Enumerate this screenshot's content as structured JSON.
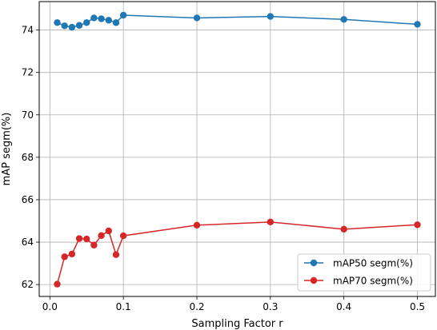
{
  "chart_data": {
    "type": "line",
    "xlabel": "Sampling Factor r",
    "ylabel": "mAP segm(%)",
    "xlim": [
      -0.0145,
      0.5245
    ],
    "ylim": [
      61.44,
      75.34
    ],
    "xticks": [
      0.0,
      0.1,
      0.2,
      0.3,
      0.4,
      0.5
    ],
    "xtick_labels": [
      "0.0",
      "0.1",
      "0.2",
      "0.3",
      "0.4",
      "0.5"
    ],
    "yticks": [
      62,
      64,
      66,
      68,
      70,
      72,
      74
    ],
    "ytick_labels": [
      "62",
      "64",
      "66",
      "68",
      "70",
      "72",
      "74"
    ],
    "grid": true,
    "legend_position": "lower-right",
    "x": [
      0.01,
      0.02,
      0.03,
      0.04,
      0.05,
      0.06,
      0.07,
      0.08,
      0.09,
      0.1,
      0.2,
      0.3,
      0.4,
      0.5
    ],
    "series": [
      {
        "name": "mAP50 segm(%)",
        "color": "#1f77b4",
        "marker": "circle",
        "values": [
          74.35,
          74.2,
          74.13,
          74.22,
          74.35,
          74.57,
          74.53,
          74.46,
          74.35,
          74.7,
          74.57,
          74.64,
          74.5,
          74.27
        ]
      },
      {
        "name": "mAP70 segm(%)",
        "color": "#d62728",
        "marker": "circle",
        "values": [
          62.02,
          63.31,
          63.44,
          64.17,
          64.15,
          63.86,
          64.31,
          64.53,
          63.41,
          64.3,
          64.8,
          64.95,
          64.61,
          64.82
        ]
      }
    ]
  }
}
